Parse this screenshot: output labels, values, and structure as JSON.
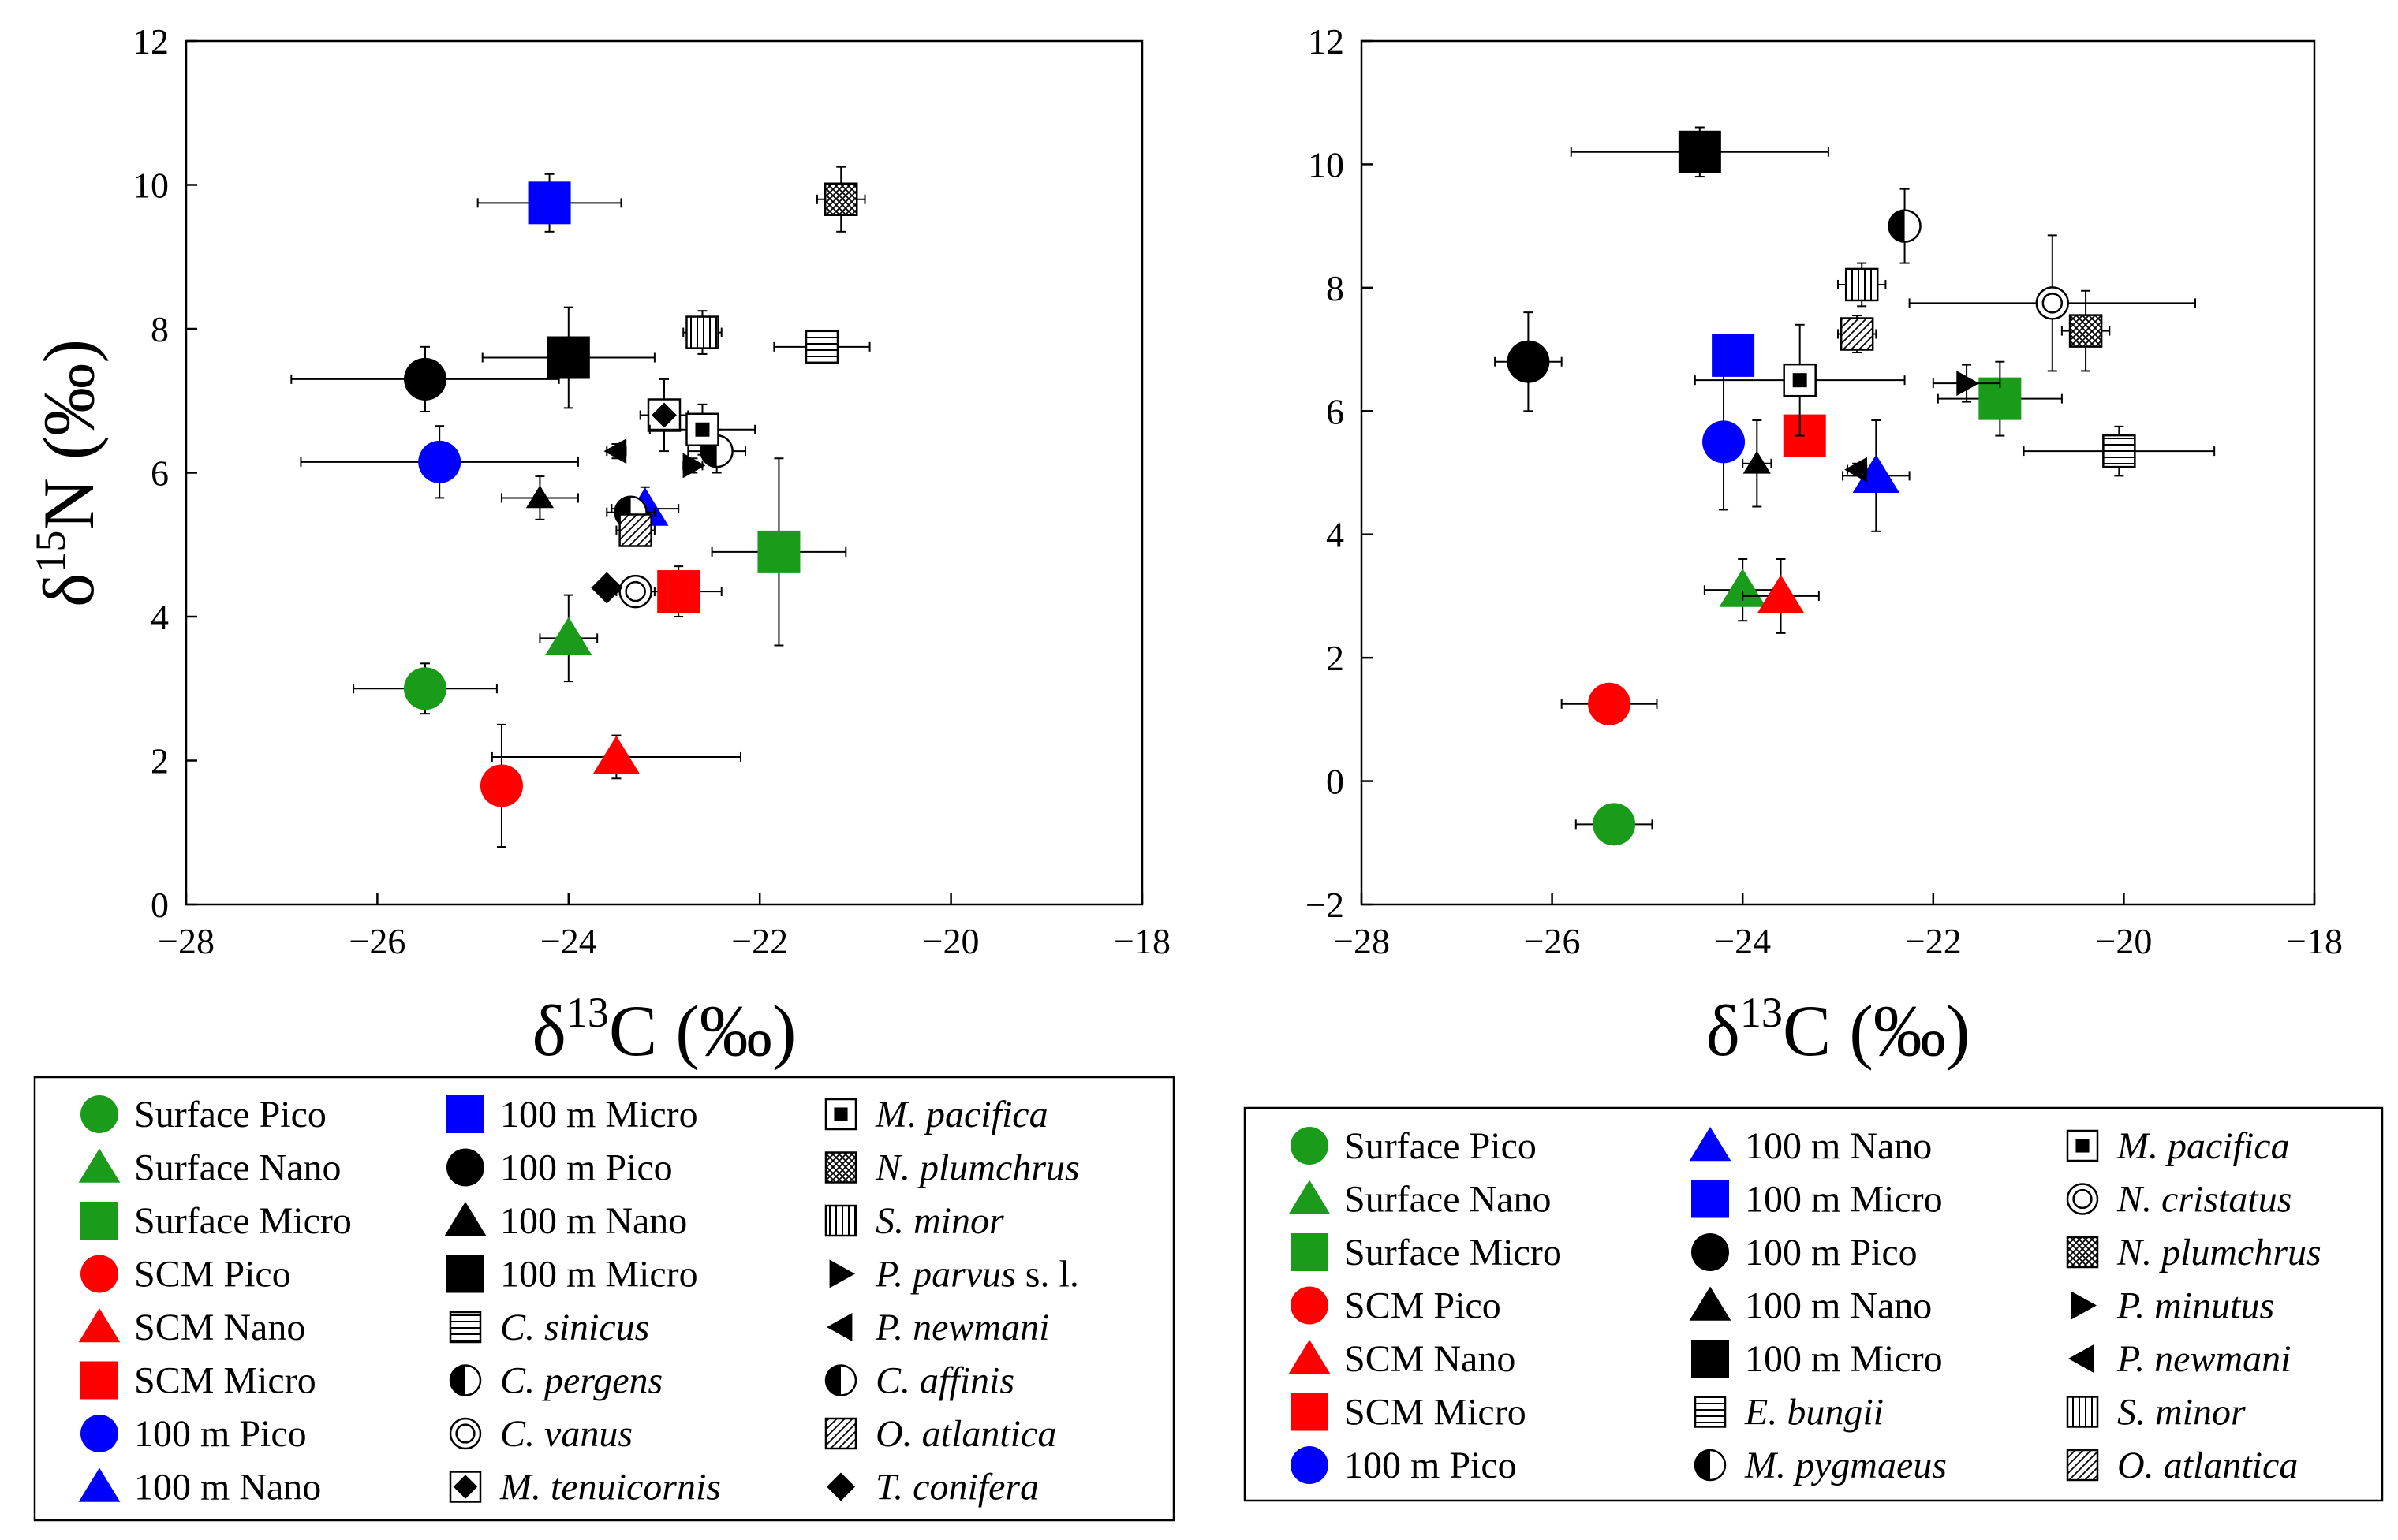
{
  "chart_data": [
    {
      "type": "scatter",
      "panel": "left",
      "xlabel": "δ13C (‰)",
      "ylabel": "δ15N (‰)",
      "xlim": [
        -28,
        -18
      ],
      "ylim": [
        0,
        12
      ],
      "xticks": [
        -28,
        -26,
        -24,
        -22,
        -20,
        -18
      ],
      "yticks": [
        0,
        2,
        4,
        6,
        8,
        10,
        12
      ],
      "xtick_labels": [
        "−28",
        "−26",
        "−24",
        "−22",
        "−20",
        "−18"
      ],
      "ytick_labels": [
        "0",
        "2",
        "4",
        "6",
        "8",
        "10",
        "12"
      ],
      "points": [
        {
          "name": "Surface Pico",
          "x": -25.5,
          "y": 3.0,
          "xerr": 0.75,
          "yerr": 0.35,
          "marker": "circle",
          "color": "#1a9b1a",
          "size": "big"
        },
        {
          "name": "Surface Nano",
          "x": -24.0,
          "y": 3.7,
          "xerr": 0.3,
          "yerr": 0.6,
          "marker": "triangle",
          "color": "#1a9b1a",
          "size": "big"
        },
        {
          "name": "Surface Micro",
          "x": -21.8,
          "y": 4.9,
          "xerr": 0.7,
          "yerr": 1.3,
          "marker": "square",
          "color": "#1a9b1a",
          "size": "big"
        },
        {
          "name": "SCM Pico",
          "x": -24.7,
          "y": 1.65,
          "xerr": 0.2,
          "yerr": 0.85,
          "marker": "circle",
          "color": "#ff0000",
          "size": "big"
        },
        {
          "name": "SCM Nano",
          "x": -23.5,
          "y": 2.05,
          "xerr": 1.3,
          "yerr": 0.3,
          "marker": "triangle",
          "color": "#ff0000",
          "size": "big"
        },
        {
          "name": "SCM Micro",
          "x": -22.85,
          "y": 4.35,
          "xerr": 0.45,
          "yerr": 0.35,
          "marker": "square",
          "color": "#ff0000",
          "size": "big"
        },
        {
          "name": "100 m Pico",
          "x": -25.35,
          "y": 6.15,
          "xerr": 1.45,
          "yerr": 0.5,
          "marker": "circle",
          "color": "#0000ff",
          "size": "big"
        },
        {
          "name": "100 m Nano",
          "x": -23.2,
          "y": 5.5,
          "xerr": 0.35,
          "yerr": 0.3,
          "marker": "triangle",
          "color": "#0000ff",
          "size": "big"
        },
        {
          "name": "100 m Micro",
          "x": -24.2,
          "y": 9.75,
          "xerr": 0.75,
          "yerr": 0.4,
          "marker": "square",
          "color": "#0000ff",
          "size": "big"
        },
        {
          "name": "100 m Pico",
          "x": -25.5,
          "y": 7.3,
          "xerr": 1.4,
          "yerr": 0.45,
          "marker": "circle",
          "color": "#000000",
          "size": "big"
        },
        {
          "name": "100 m Nano",
          "x": -24.3,
          "y": 5.65,
          "xerr": 0.4,
          "yerr": 0.3,
          "marker": "triangle",
          "color": "#000000",
          "size": "small"
        },
        {
          "name": "100 m Micro",
          "x": -24.0,
          "y": 7.6,
          "xerr": 0.9,
          "yerr": 0.7,
          "marker": "square",
          "color": "#000000",
          "size": "big"
        },
        {
          "name": "C. sinicus",
          "x": -21.35,
          "y": 7.75,
          "xerr": 0.5,
          "yerr": 0.2,
          "marker": "hlines",
          "color": "#000000",
          "size": "med"
        },
        {
          "name": "C. pergens",
          "x": -22.45,
          "y": 6.3,
          "xerr": 0.3,
          "yerr": 0.3,
          "marker": "halfcircle",
          "color": "#000000",
          "size": "med"
        },
        {
          "name": "C. vanus",
          "x": -23.3,
          "y": 4.35,
          "xerr": 0.2,
          "yerr": 0.2,
          "marker": "ring",
          "color": "#000000",
          "size": "med"
        },
        {
          "name": "M. tenuicornis",
          "x": -23.0,
          "y": 6.8,
          "xerr": 0.25,
          "yerr": 0.5,
          "marker": "diamondsq",
          "color": "#000000",
          "size": "med"
        },
        {
          "name": "M. pacifica",
          "x": -22.6,
          "y": 6.6,
          "xerr": 0.55,
          "yerr": 0.35,
          "marker": "boxsq",
          "color": "#000000",
          "size": "med"
        },
        {
          "name": "N. plumchrus",
          "x": -21.15,
          "y": 9.8,
          "xerr": 0.25,
          "yerr": 0.45,
          "marker": "crosshatch",
          "color": "#000000",
          "size": "med"
        },
        {
          "name": "S. minor",
          "x": -22.6,
          "y": 7.95,
          "xerr": 0.2,
          "yerr": 0.3,
          "marker": "vlines",
          "color": "#000000",
          "size": "med"
        },
        {
          "name": "P. parvus s. l.",
          "x": -22.7,
          "y": 6.1,
          "xerr": 0.1,
          "yerr": 0.1,
          "marker": "tri-right",
          "color": "#000000",
          "size": "small"
        },
        {
          "name": "P. newmani",
          "x": -23.5,
          "y": 6.3,
          "xerr": 0.1,
          "yerr": 0.1,
          "marker": "tri-left",
          "color": "#000000",
          "size": "small"
        },
        {
          "name": "C. affinis",
          "x": -23.35,
          "y": 5.45,
          "xerr": 0.25,
          "yerr": 0.2,
          "marker": "halfcircle",
          "color": "#000000",
          "size": "med"
        },
        {
          "name": "O. atlantica",
          "x": -23.3,
          "y": 5.2,
          "xerr": 0.2,
          "yerr": 0.2,
          "marker": "diag",
          "color": "#000000",
          "size": "med"
        },
        {
          "name": "T. conifera",
          "x": -23.6,
          "y": 4.4,
          "xerr": 0.1,
          "yerr": 0.1,
          "marker": "diamond",
          "color": "#000000",
          "size": "med"
        }
      ],
      "legend": {
        "columns": [
          [
            {
              "label": "Surface Pico",
              "marker": "circle",
              "color": "#1a9b1a",
              "italic": false
            },
            {
              "label": "Surface Nano",
              "marker": "triangle",
              "color": "#1a9b1a",
              "italic": false
            },
            {
              "label": "Surface Micro",
              "marker": "square",
              "color": "#1a9b1a",
              "italic": false
            },
            {
              "label": "SCM Pico",
              "marker": "circle",
              "color": "#ff0000",
              "italic": false
            },
            {
              "label": "SCM Nano",
              "marker": "triangle",
              "color": "#ff0000",
              "italic": false
            },
            {
              "label": "SCM Micro",
              "marker": "square",
              "color": "#ff0000",
              "italic": false
            },
            {
              "label": "100 m Pico",
              "marker": "circle",
              "color": "#0000ff",
              "italic": false
            },
            {
              "label": "100 m Nano",
              "marker": "triangle",
              "color": "#0000ff",
              "italic": false
            }
          ],
          [
            {
              "label": "100 m Micro",
              "marker": "square",
              "color": "#0000ff",
              "italic": false
            },
            {
              "label": "100 m Pico",
              "marker": "circle",
              "color": "#000000",
              "italic": false
            },
            {
              "label": "100 m Nano",
              "marker": "triangle",
              "color": "#000000",
              "italic": false
            },
            {
              "label": "100 m Micro",
              "marker": "square",
              "color": "#000000",
              "italic": false
            },
            {
              "label": "C. sinicus",
              "marker": "hlines",
              "color": "#000000",
              "italic": true
            },
            {
              "label": "C. pergens",
              "marker": "halfcircle",
              "color": "#000000",
              "italic": true
            },
            {
              "label": "C. vanus",
              "marker": "ring",
              "color": "#000000",
              "italic": true
            },
            {
              "label": "M. tenuicornis",
              "marker": "diamondsq",
              "color": "#000000",
              "italic": true
            }
          ],
          [
            {
              "label": "M. pacifica",
              "marker": "boxsq",
              "color": "#000000",
              "italic": true
            },
            {
              "label": "N. plumchrus",
              "marker": "crosshatch",
              "color": "#000000",
              "italic": true
            },
            {
              "label": "S. minor",
              "marker": "vlines",
              "color": "#000000",
              "italic": true
            },
            {
              "label": "P. parvus",
              "suffix": " s. l.",
              "marker": "tri-right",
              "color": "#000000",
              "italic": true
            },
            {
              "label": "P. newmani",
              "marker": "tri-left",
              "color": "#000000",
              "italic": true
            },
            {
              "label": "C. affinis",
              "marker": "halfcircle",
              "color": "#000000",
              "italic": true
            },
            {
              "label": "O. atlantica",
              "marker": "diag",
              "color": "#000000",
              "italic": true
            },
            {
              "label": "T. conifera",
              "marker": "diamond",
              "color": "#000000",
              "italic": true
            }
          ]
        ]
      }
    },
    {
      "type": "scatter",
      "panel": "right",
      "xlabel": "δ13C (‰)",
      "ylabel": "",
      "xlim": [
        -28,
        -18
      ],
      "ylim": [
        -2,
        12
      ],
      "xticks": [
        -28,
        -26,
        -24,
        -22,
        -20,
        -18
      ],
      "yticks": [
        -2,
        0,
        2,
        4,
        6,
        8,
        10,
        12
      ],
      "xtick_labels": [
        "−28",
        "−26",
        "−24",
        "−22",
        "−20",
        "−18"
      ],
      "ytick_labels": [
        "−2",
        "0",
        "2",
        "4",
        "6",
        "8",
        "10",
        "12"
      ],
      "points": [
        {
          "name": "Surface Pico",
          "x": -25.35,
          "y": -0.7,
          "xerr": 0.4,
          "yerr": 0.1,
          "marker": "circle",
          "color": "#1a9b1a",
          "size": "big"
        },
        {
          "name": "Surface Nano",
          "x": -24.0,
          "y": 3.1,
          "xerr": 0.4,
          "yerr": 0.5,
          "marker": "triangle",
          "color": "#1a9b1a",
          "size": "big"
        },
        {
          "name": "Surface Micro",
          "x": -21.3,
          "y": 6.2,
          "xerr": 0.65,
          "yerr": 0.6,
          "marker": "square",
          "color": "#1a9b1a",
          "size": "big"
        },
        {
          "name": "SCM Pico",
          "x": -25.4,
          "y": 1.25,
          "xerr": 0.5,
          "yerr": 0.1,
          "marker": "circle",
          "color": "#ff0000",
          "size": "big"
        },
        {
          "name": "SCM Nano",
          "x": -23.6,
          "y": 3.0,
          "xerr": 0.4,
          "yerr": 0.6,
          "marker": "triangle",
          "color": "#ff0000",
          "size": "big"
        },
        {
          "name": "SCM Micro",
          "x": -23.35,
          "y": 5.6,
          "xerr": 0.15,
          "yerr": 0.15,
          "marker": "square",
          "color": "#ff0000",
          "size": "big"
        },
        {
          "name": "100 m Pico",
          "x": -24.2,
          "y": 5.5,
          "xerr": 0.15,
          "yerr": 1.1,
          "marker": "circle",
          "color": "#0000ff",
          "size": "big"
        },
        {
          "name": "100 m Nano",
          "x": -22.6,
          "y": 4.95,
          "xerr": 0.35,
          "yerr": 0.9,
          "marker": "triangle",
          "color": "#0000ff",
          "size": "big"
        },
        {
          "name": "100 m Micro",
          "x": -24.1,
          "y": 6.9,
          "xerr": 0.2,
          "yerr": 0.2,
          "marker": "square",
          "color": "#0000ff",
          "size": "big"
        },
        {
          "name": "100 m Pico",
          "x": -26.25,
          "y": 6.8,
          "xerr": 0.35,
          "yerr": 0.8,
          "marker": "circle",
          "color": "#000000",
          "size": "big"
        },
        {
          "name": "100 m Nano",
          "x": -23.85,
          "y": 5.15,
          "xerr": 0.15,
          "yerr": 0.7,
          "marker": "triangle",
          "color": "#000000",
          "size": "small"
        },
        {
          "name": "100 m Micro",
          "x": -24.45,
          "y": 10.2,
          "xerr": 1.35,
          "yerr": 0.4,
          "marker": "square",
          "color": "#000000",
          "size": "big"
        },
        {
          "name": "E. bungii",
          "x": -20.05,
          "y": 5.35,
          "xerr": 1.0,
          "yerr": 0.4,
          "marker": "hlines",
          "color": "#000000",
          "size": "med"
        },
        {
          "name": "M. pygmaeus",
          "x": -22.3,
          "y": 9.0,
          "xerr": 0.15,
          "yerr": 0.6,
          "marker": "halfcircle",
          "color": "#000000",
          "size": "med"
        },
        {
          "name": "M. pacifica",
          "x": -23.4,
          "y": 6.5,
          "xerr": 1.1,
          "yerr": 0.9,
          "marker": "boxsq",
          "color": "#000000",
          "size": "med"
        },
        {
          "name": "N. cristatus",
          "x": -20.75,
          "y": 7.75,
          "xerr": 1.5,
          "yerr": 1.1,
          "marker": "ring",
          "color": "#000000",
          "size": "med"
        },
        {
          "name": "N. plumchrus",
          "x": -20.4,
          "y": 7.3,
          "xerr": 0.25,
          "yerr": 0.65,
          "marker": "crosshatch",
          "color": "#000000",
          "size": "med"
        },
        {
          "name": "P. minutus",
          "x": -21.65,
          "y": 6.45,
          "xerr": 0.35,
          "yerr": 0.3,
          "marker": "tri-right",
          "color": "#000000",
          "size": "small"
        },
        {
          "name": "P. newmani",
          "x": -22.8,
          "y": 5.05,
          "xerr": 0.1,
          "yerr": 0.1,
          "marker": "tri-left",
          "color": "#000000",
          "size": "small"
        },
        {
          "name": "S. minor",
          "x": -22.75,
          "y": 8.05,
          "xerr": 0.25,
          "yerr": 0.35,
          "marker": "vlines",
          "color": "#000000",
          "size": "med"
        },
        {
          "name": "O. atlantica",
          "x": -22.8,
          "y": 7.25,
          "xerr": 0.2,
          "yerr": 0.3,
          "marker": "diag",
          "color": "#000000",
          "size": "med"
        }
      ],
      "legend": {
        "columns": [
          [
            {
              "label": "Surface Pico",
              "marker": "circle",
              "color": "#1a9b1a",
              "italic": false
            },
            {
              "label": "Surface Nano",
              "marker": "triangle",
              "color": "#1a9b1a",
              "italic": false
            },
            {
              "label": "Surface Micro",
              "marker": "square",
              "color": "#1a9b1a",
              "italic": false
            },
            {
              "label": "SCM Pico",
              "marker": "circle",
              "color": "#ff0000",
              "italic": false
            },
            {
              "label": "SCM Nano",
              "marker": "triangle",
              "color": "#ff0000",
              "italic": false
            },
            {
              "label": "SCM Micro",
              "marker": "square",
              "color": "#ff0000",
              "italic": false
            },
            {
              "label": "100 m Pico",
              "marker": "circle",
              "color": "#0000ff",
              "italic": false
            }
          ],
          [
            {
              "label": "100 m Nano",
              "marker": "triangle",
              "color": "#0000ff",
              "italic": false
            },
            {
              "label": "100 m Micro",
              "marker": "square",
              "color": "#0000ff",
              "italic": false
            },
            {
              "label": "100 m Pico",
              "marker": "circle",
              "color": "#000000",
              "italic": false
            },
            {
              "label": "100 m Nano",
              "marker": "triangle",
              "color": "#000000",
              "italic": false
            },
            {
              "label": "100 m Micro",
              "marker": "square",
              "color": "#000000",
              "italic": false
            },
            {
              "label": "E. bungii",
              "marker": "hlines",
              "color": "#000000",
              "italic": true
            },
            {
              "label": "M. pygmaeus",
              "marker": "halfcircle",
              "color": "#000000",
              "italic": true
            }
          ],
          [
            {
              "label": "M. pacifica",
              "marker": "boxsq",
              "color": "#000000",
              "italic": true
            },
            {
              "label": "N. cristatus",
              "marker": "ring",
              "color": "#000000",
              "italic": true
            },
            {
              "label": "N. plumchrus",
              "marker": "crosshatch",
              "color": "#000000",
              "italic": true
            },
            {
              "label": "P. minutus",
              "marker": "tri-right",
              "color": "#000000",
              "italic": true
            },
            {
              "label": "P. newmani",
              "marker": "tri-left",
              "color": "#000000",
              "italic": true
            },
            {
              "label": "S. minor",
              "marker": "vlines",
              "color": "#000000",
              "italic": true
            },
            {
              "label": "O. atlantica",
              "marker": "diag",
              "color": "#000000",
              "italic": true
            }
          ]
        ]
      }
    }
  ]
}
